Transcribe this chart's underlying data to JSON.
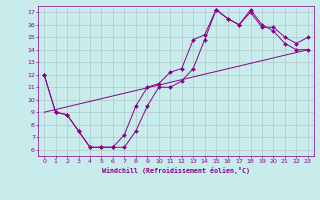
{
  "xlabel": "Windchill (Refroidissement éolien,°C)",
  "bg_color": "#c8ecec",
  "grid_color": "#b0c8c8",
  "line_color": "#880088",
  "xlim": [
    -0.5,
    23.5
  ],
  "ylim": [
    5.5,
    17.5
  ],
  "xticks": [
    0,
    1,
    2,
    3,
    4,
    5,
    6,
    7,
    8,
    9,
    10,
    11,
    12,
    13,
    14,
    15,
    16,
    17,
    18,
    19,
    20,
    21,
    22,
    23
  ],
  "yticks": [
    6,
    7,
    8,
    9,
    10,
    11,
    12,
    13,
    14,
    15,
    16,
    17
  ],
  "curve1_x": [
    0,
    1,
    2,
    3,
    4,
    5,
    6,
    7,
    8,
    9,
    10,
    11,
    12,
    13,
    14,
    15,
    16,
    17,
    18,
    19,
    20,
    21,
    22,
    23
  ],
  "curve1_y": [
    12,
    9,
    8.8,
    7.5,
    6.2,
    6.2,
    6.2,
    7.2,
    9.5,
    11.0,
    11.3,
    12.2,
    12.5,
    14.8,
    15.2,
    17.2,
    16.5,
    16.0,
    17.0,
    15.8,
    15.8,
    15.0,
    14.5,
    15.0
  ],
  "curve2_x": [
    0,
    1,
    2,
    3,
    4,
    5,
    6,
    7,
    8,
    9,
    10,
    11,
    12,
    13,
    14,
    15,
    16,
    17,
    18,
    19,
    20,
    21,
    22,
    23
  ],
  "curve2_y": [
    12,
    9,
    8.8,
    7.5,
    6.2,
    6.2,
    6.2,
    6.2,
    7.5,
    9.5,
    11.0,
    11.0,
    11.5,
    12.5,
    14.8,
    17.2,
    16.5,
    16.0,
    17.2,
    16.0,
    15.5,
    14.5,
    14.0,
    14.0
  ],
  "curve3_x": [
    0,
    23
  ],
  "curve3_y": [
    9.0,
    14.0
  ]
}
